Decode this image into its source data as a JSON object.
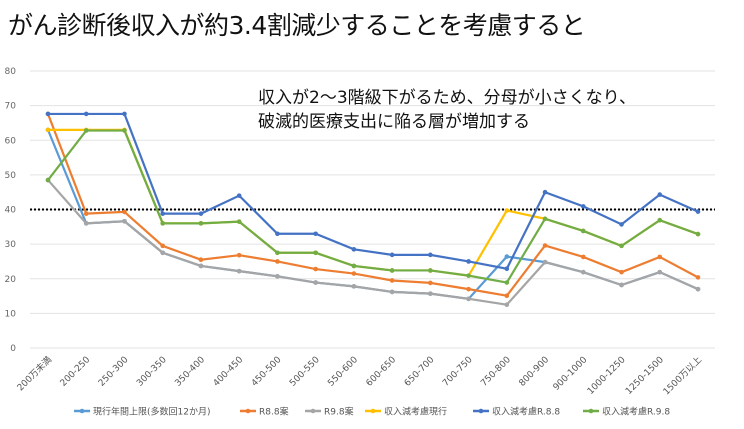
{
  "title": "がん診断後収入が約3.4割減少することを考慮すると",
  "annotation": [
    "収入が2〜3階級下がるため、分母が小さくなり、",
    "破滅的医療支出に陥る層が増加する"
  ],
  "chart_data": {
    "type": "line",
    "categories": [
      "200万未満",
      "200-250",
      "250-300",
      "300-350",
      "350-400",
      "400-450",
      "450-500",
      "500-550",
      "550-600",
      "600-650",
      "650-700",
      "700-750",
      "750-800",
      "800-900",
      "900-1000",
      "1000-1250",
      "1250-1500",
      "1500万以上"
    ],
    "ylim": [
      0,
      80
    ],
    "yticks": [
      0,
      10,
      20,
      30,
      40,
      50,
      60,
      70,
      80
    ],
    "grid": true,
    "legend_position": "bottom",
    "reference_line": {
      "y": 40,
      "style": "dotted",
      "color": "#000000"
    },
    "series": [
      {
        "name": "現行年間上限(多数回12か月)",
        "color": "#5b9bd5",
        "values": [
          63,
          36,
          36.6,
          27.5,
          23.7,
          22.2,
          20.7,
          18.9,
          17.8,
          16.2,
          15.7,
          14.2,
          26.4,
          24.8,
          21.9,
          18.2,
          21.9,
          17
        ]
      },
      {
        "name": "R8.8案",
        "color": "#ed7d31",
        "values": [
          67.6,
          38.8,
          39.3,
          29.5,
          25.5,
          26.8,
          25,
          22.8,
          21.5,
          19.5,
          18.8,
          17,
          15.1,
          29.6,
          26.3,
          21.9,
          26.3,
          20.4
        ]
      },
      {
        "name": "R9.8案",
        "color": "#a5a5a5",
        "values": [
          48.5,
          36,
          36.6,
          27.5,
          23.7,
          22.2,
          20.7,
          18.9,
          17.8,
          16.2,
          15.7,
          14.2,
          12.5,
          24.8,
          21.9,
          18.2,
          21.9,
          17
        ]
      },
      {
        "name": "収入減考慮現行",
        "color": "#ffc000",
        "values": [
          63,
          63,
          63,
          36,
          36,
          36.5,
          27.5,
          27.5,
          23.7,
          22.4,
          22.4,
          20.9,
          39.7,
          37.3,
          33.8,
          29.5,
          36.9,
          32.9
        ]
      },
      {
        "name": "収入減考慮R.8.8",
        "color": "#4472c4",
        "values": [
          67.6,
          67.6,
          67.6,
          38.8,
          38.8,
          44,
          33,
          33,
          28.5,
          26.9,
          26.9,
          25,
          22.9,
          45,
          40.9,
          35.7,
          44.3,
          39.4
        ]
      },
      {
        "name": "収入減考慮R.9.8",
        "color": "#70ad47",
        "values": [
          48.5,
          62.8,
          62.8,
          36,
          36,
          36.5,
          27.5,
          27.5,
          23.7,
          22.4,
          22.4,
          20.9,
          18.9,
          37.3,
          33.8,
          29.5,
          36.9,
          32.9
        ]
      }
    ]
  }
}
